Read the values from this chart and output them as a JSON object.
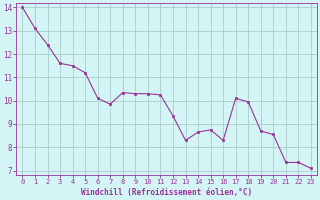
{
  "x": [
    0,
    1,
    2,
    3,
    4,
    5,
    6,
    7,
    8,
    9,
    10,
    11,
    12,
    13,
    14,
    15,
    16,
    17,
    18,
    19,
    20,
    21,
    22,
    23
  ],
  "y": [
    14.0,
    13.1,
    12.4,
    11.6,
    11.5,
    11.2,
    10.1,
    9.85,
    10.35,
    10.3,
    10.3,
    10.25,
    9.35,
    8.3,
    8.65,
    8.75,
    8.3,
    10.1,
    9.95,
    8.7,
    8.55,
    7.35,
    7.35,
    7.1
  ],
  "line_color": "#993399",
  "marker": "s",
  "marker_size": 2.0,
  "bg_color": "#d4f5f5",
  "grid_color": "#aacccc",
  "xlabel": "Windchill (Refroidissement éolien,°C)",
  "xlabel_color": "#993399",
  "tick_color": "#993399",
  "ylim": [
    6.8,
    14.2
  ],
  "xlim": [
    -0.5,
    23.5
  ],
  "yticks": [
    7,
    8,
    9,
    10,
    11,
    12,
    13,
    14
  ],
  "xticks": [
    0,
    1,
    2,
    3,
    4,
    5,
    6,
    7,
    8,
    9,
    10,
    11,
    12,
    13,
    14,
    15,
    16,
    17,
    18,
    19,
    20,
    21,
    22,
    23
  ],
  "tick_fontsize": 5.0,
  "ytick_fontsize": 5.5,
  "xlabel_fontsize": 5.5
}
